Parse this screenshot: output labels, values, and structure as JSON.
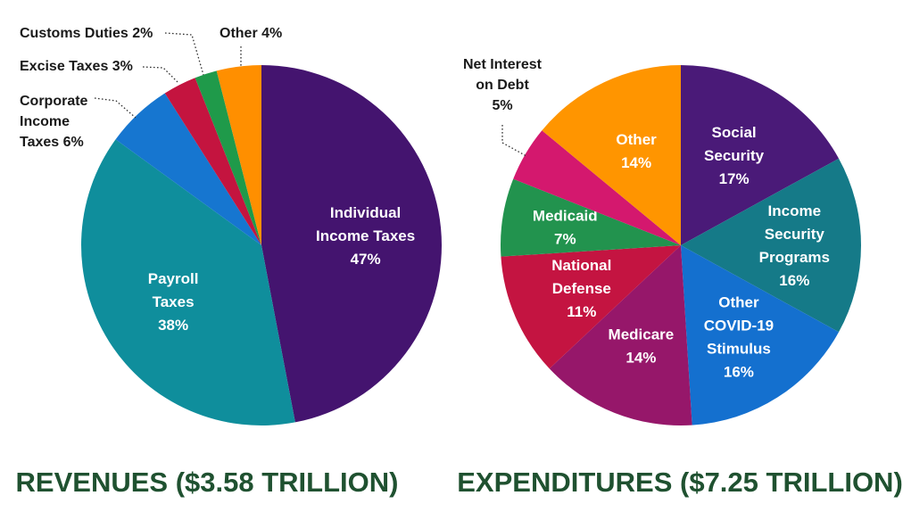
{
  "chart_data": [
    {
      "type": "pie",
      "title": "REVENUES ($3.58 TRILLION)",
      "slices": [
        {
          "name": "Individual Income Taxes",
          "value": 47,
          "label_lines": [
            "Individual",
            "Income Taxes",
            "47%"
          ],
          "color": "#44146f",
          "label_style": "inside"
        },
        {
          "name": "Payroll Taxes",
          "value": 38,
          "label_lines": [
            "Payroll",
            "Taxes",
            "38%"
          ],
          "color": "#0f8e9c",
          "label_style": "inside"
        },
        {
          "name": "Corporate Income Taxes",
          "value": 6,
          "label_lines": [
            "Corporate",
            "Income",
            "Taxes 6%"
          ],
          "color": "#1676d0",
          "label_style": "outside"
        },
        {
          "name": "Excise Taxes",
          "value": 3,
          "label_lines": [
            "Excise Taxes 3%"
          ],
          "color": "#c4143f",
          "label_style": "outside"
        },
        {
          "name": "Customs Duties",
          "value": 2,
          "label_lines": [
            "Customs Duties 2%"
          ],
          "color": "#1f9a4a",
          "label_style": "outside"
        },
        {
          "name": "Other",
          "value": 4,
          "label_lines": [
            "Other 4%"
          ],
          "color": "#ff8f00",
          "label_style": "outside"
        }
      ]
    },
    {
      "type": "pie",
      "title": "EXPENDITURES ($7.25 TRILLION)",
      "slices": [
        {
          "name": "Social Security",
          "value": 17,
          "label_lines": [
            "Social",
            "Security",
            "17%"
          ],
          "color": "#4a1a78",
          "label_style": "inside"
        },
        {
          "name": "Income Security Programs",
          "value": 16,
          "label_lines": [
            "Income",
            "Security",
            "Programs",
            "16%"
          ],
          "color": "#157a88",
          "label_style": "inside"
        },
        {
          "name": "Other COVID-19 Stimulus",
          "value": 16,
          "label_lines": [
            "Other",
            "COVID-19",
            "Stimulus",
            "16%"
          ],
          "color": "#1470cf",
          "label_style": "inside"
        },
        {
          "name": "Medicare",
          "value": 14,
          "label_lines": [
            "Medicare",
            "14%"
          ],
          "color": "#96176a",
          "label_style": "inside"
        },
        {
          "name": "National Defense",
          "value": 11,
          "label_lines": [
            "National",
            "Defense",
            "11%"
          ],
          "color": "#c41441",
          "label_style": "inside"
        },
        {
          "name": "Medicaid",
          "value": 7,
          "label_lines": [
            "Medicaid",
            "7%"
          ],
          "color": "#22934e",
          "label_style": "inside"
        },
        {
          "name": "Net Interest on Debt",
          "value": 5,
          "label_lines": [
            "Net Interest",
            "on Debt",
            "5%"
          ],
          "color": "#d4186e",
          "label_style": "outside"
        },
        {
          "name": "Other",
          "value": 14,
          "label_lines": [
            "Other",
            "14%"
          ],
          "color": "#ff9500",
          "label_style": "inside"
        }
      ]
    }
  ]
}
